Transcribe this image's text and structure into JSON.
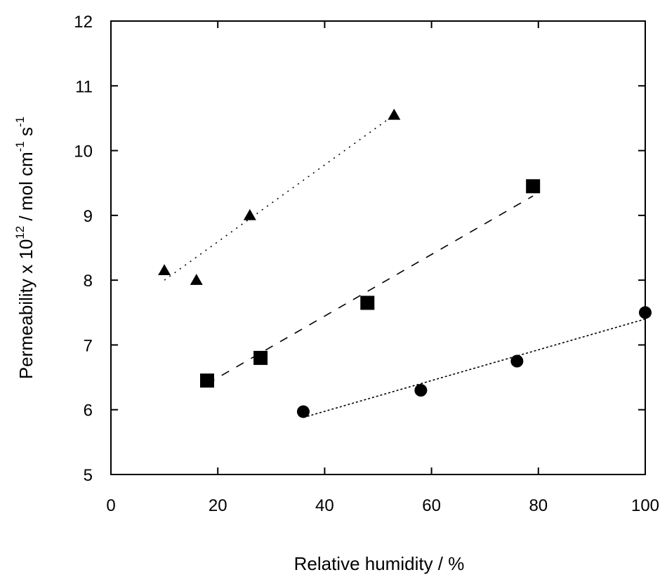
{
  "chart_data": {
    "type": "scatter",
    "xlabel": "Relative humidity / %",
    "ylabel_parts": [
      "Permeability x 10",
      "12",
      " / mol cm",
      "-1",
      " s",
      "-1"
    ],
    "xlim": [
      0,
      100
    ],
    "ylim": [
      5,
      12
    ],
    "x_ticks": [
      "0",
      "20",
      "40",
      "60",
      "80",
      "100"
    ],
    "y_ticks": [
      "5",
      "6",
      "7",
      "8",
      "9",
      "10",
      "11",
      "12"
    ],
    "grid": false,
    "legend": "none",
    "series": [
      {
        "marker": "triangle",
        "fit_style": "dotted",
        "points": [
          [
            10,
            8.15
          ],
          [
            16,
            8.0
          ],
          [
            26,
            9.0
          ],
          [
            53,
            10.55
          ]
        ],
        "fit": [
          [
            10,
            8.0
          ],
          [
            53,
            10.55
          ]
        ]
      },
      {
        "marker": "square",
        "fit_style": "dashed",
        "points": [
          [
            18,
            6.45
          ],
          [
            28,
            6.8
          ],
          [
            48,
            7.65
          ],
          [
            79,
            9.45
          ]
        ],
        "fit": [
          [
            18,
            6.4
          ],
          [
            79,
            9.3
          ]
        ]
      },
      {
        "marker": "circle",
        "fit_style": "dotted-fine",
        "points": [
          [
            36,
            5.97
          ],
          [
            58,
            6.3
          ],
          [
            76,
            6.75
          ],
          [
            100,
            7.5
          ]
        ],
        "fit": [
          [
            36,
            5.88
          ],
          [
            100,
            7.4
          ]
        ]
      }
    ]
  }
}
